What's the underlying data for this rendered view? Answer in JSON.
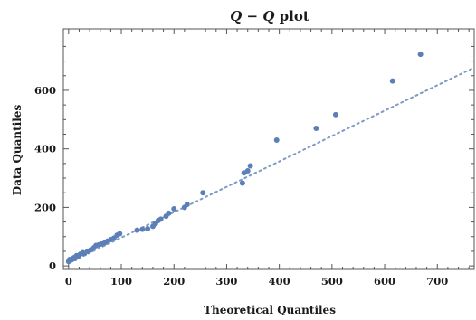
{
  "chart_data": {
    "type": "scatter",
    "title": "Q − Q plot",
    "title_parts": {
      "q1": "Q",
      "dash": " − ",
      "q2": "Q",
      "rest": " plot"
    },
    "xlabel": "Theoretical Quantiles",
    "ylabel": "Data Quantiles",
    "xlim": [
      -10,
      770
    ],
    "ylim": [
      -12,
      810
    ],
    "x_ticks": [
      0,
      100,
      200,
      300,
      400,
      500,
      600,
      700
    ],
    "y_ticks": [
      0,
      200,
      400,
      600
    ],
    "grid": false,
    "reference_line": {
      "style": "dotted",
      "from": [
        0,
        10
      ],
      "to": [
        770,
        678
      ]
    },
    "colors": {
      "points": "#5d7fb8",
      "reference_line": "#7f9ac6",
      "frame": "#555555"
    },
    "x": [
      0,
      2,
      5,
      8,
      10,
      12,
      15,
      18,
      22,
      27,
      30,
      36,
      42,
      48,
      52,
      57,
      62,
      68,
      74,
      80,
      86,
      92,
      97,
      130,
      140,
      150,
      160,
      165,
      170,
      175,
      185,
      190,
      200,
      220,
      225,
      255,
      330,
      333,
      340,
      345,
      395,
      470,
      507,
      615,
      668
    ],
    "y": [
      15,
      22,
      20,
      25,
      28,
      25,
      35,
      32,
      40,
      45,
      42,
      50,
      55,
      62,
      70,
      72,
      75,
      78,
      85,
      90,
      95,
      105,
      110,
      122,
      125,
      127,
      135,
      145,
      155,
      160,
      170,
      180,
      195,
      200,
      210,
      250,
      283,
      318,
      325,
      342,
      430,
      470,
      517,
      632,
      723
    ]
  }
}
